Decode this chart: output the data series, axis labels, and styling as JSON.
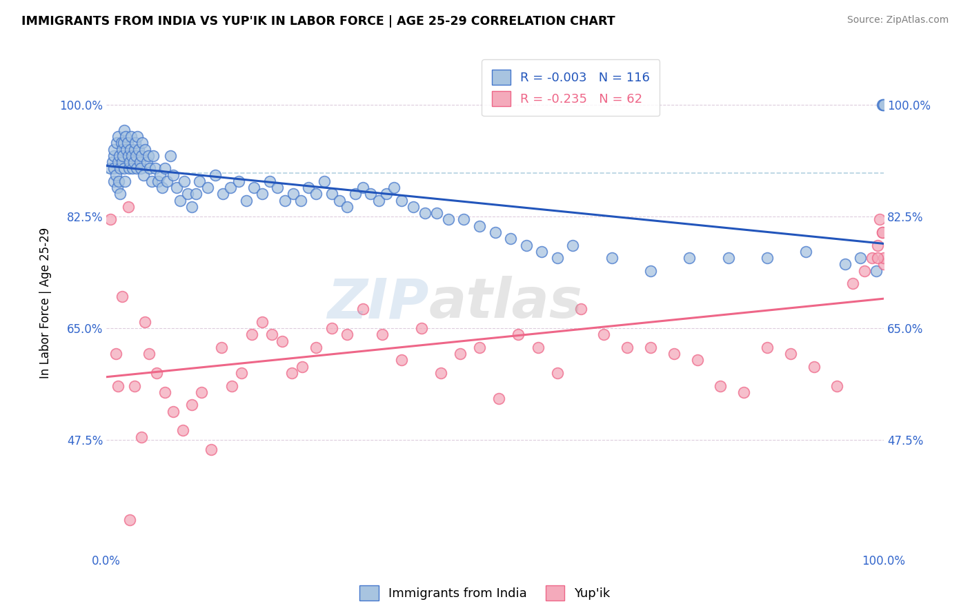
{
  "title": "IMMIGRANTS FROM INDIA VS YUP'IK IN LABOR FORCE | AGE 25-29 CORRELATION CHART",
  "source": "Source: ZipAtlas.com",
  "ylabel": "In Labor Force | Age 25-29",
  "xlim": [
    0.0,
    1.0
  ],
  "ylim": [
    0.3,
    1.08
  ],
  "yticks": [
    0.475,
    0.65,
    0.825,
    1.0
  ],
  "ytick_labels": [
    "47.5%",
    "65.0%",
    "82.5%",
    "100.0%"
  ],
  "xtick_labels": [
    "0.0%",
    "100.0%"
  ],
  "xticks": [
    0.0,
    1.0
  ],
  "blue_R": "-0.003",
  "blue_N": "116",
  "pink_R": "-0.235",
  "pink_N": "62",
  "legend_label_blue": "Immigrants from India",
  "legend_label_pink": "Yup'ik",
  "blue_color": "#A8C4E0",
  "pink_color": "#F4AABB",
  "blue_edge_color": "#4477CC",
  "pink_edge_color": "#EE6688",
  "blue_line_color": "#2255BB",
  "pink_line_color": "#EE6688",
  "dashed_line_color": "#AACCDD",
  "watermark_zip": "ZIP",
  "watermark_atlas": "atlas",
  "blue_scatter_x": [
    0.005,
    0.008,
    0.01,
    0.01,
    0.01,
    0.01,
    0.012,
    0.013,
    0.014,
    0.015,
    0.015,
    0.016,
    0.017,
    0.018,
    0.018,
    0.019,
    0.02,
    0.02,
    0.021,
    0.022,
    0.023,
    0.023,
    0.024,
    0.025,
    0.026,
    0.027,
    0.028,
    0.029,
    0.03,
    0.031,
    0.032,
    0.033,
    0.034,
    0.035,
    0.036,
    0.037,
    0.038,
    0.039,
    0.04,
    0.042,
    0.043,
    0.044,
    0.045,
    0.046,
    0.048,
    0.05,
    0.052,
    0.054,
    0.056,
    0.058,
    0.06,
    0.063,
    0.066,
    0.069,
    0.072,
    0.075,
    0.078,
    0.082,
    0.086,
    0.09,
    0.095,
    0.1,
    0.105,
    0.11,
    0.115,
    0.12,
    0.13,
    0.14,
    0.15,
    0.16,
    0.17,
    0.18,
    0.19,
    0.2,
    0.21,
    0.22,
    0.23,
    0.24,
    0.25,
    0.26,
    0.27,
    0.28,
    0.29,
    0.3,
    0.31,
    0.32,
    0.33,
    0.34,
    0.35,
    0.36,
    0.37,
    0.38,
    0.395,
    0.41,
    0.425,
    0.44,
    0.46,
    0.48,
    0.5,
    0.52,
    0.54,
    0.56,
    0.58,
    0.6,
    0.65,
    0.7,
    0.75,
    0.8,
    0.85,
    0.9,
    0.95,
    0.97,
    0.99,
    0.998,
    0.999,
    1.0
  ],
  "blue_scatter_y": [
    0.9,
    0.91,
    0.92,
    0.88,
    0.9,
    0.93,
    0.89,
    0.94,
    0.87,
    0.91,
    0.95,
    0.88,
    0.92,
    0.9,
    0.86,
    0.94,
    0.93,
    0.91,
    0.92,
    0.94,
    0.9,
    0.96,
    0.88,
    0.95,
    0.93,
    0.94,
    0.92,
    0.9,
    0.91,
    0.93,
    0.95,
    0.92,
    0.9,
    0.91,
    0.93,
    0.94,
    0.92,
    0.9,
    0.95,
    0.93,
    0.91,
    0.9,
    0.92,
    0.94,
    0.89,
    0.93,
    0.91,
    0.92,
    0.9,
    0.88,
    0.92,
    0.9,
    0.88,
    0.89,
    0.87,
    0.9,
    0.88,
    0.92,
    0.89,
    0.87,
    0.85,
    0.88,
    0.86,
    0.84,
    0.86,
    0.88,
    0.87,
    0.89,
    0.86,
    0.87,
    0.88,
    0.85,
    0.87,
    0.86,
    0.88,
    0.87,
    0.85,
    0.86,
    0.85,
    0.87,
    0.86,
    0.88,
    0.86,
    0.85,
    0.84,
    0.86,
    0.87,
    0.86,
    0.85,
    0.86,
    0.87,
    0.85,
    0.84,
    0.83,
    0.83,
    0.82,
    0.82,
    0.81,
    0.8,
    0.79,
    0.78,
    0.77,
    0.76,
    0.78,
    0.76,
    0.74,
    0.76,
    0.76,
    0.76,
    0.77,
    0.75,
    0.76,
    0.74,
    1.0,
    1.0,
    1.0
  ],
  "pink_scatter_x": [
    0.005,
    0.012,
    0.02,
    0.028,
    0.036,
    0.045,
    0.055,
    0.065,
    0.075,
    0.086,
    0.098,
    0.11,
    0.122,
    0.135,
    0.148,
    0.161,
    0.174,
    0.187,
    0.2,
    0.213,
    0.226,
    0.239,
    0.252,
    0.27,
    0.29,
    0.31,
    0.33,
    0.355,
    0.38,
    0.405,
    0.43,
    0.455,
    0.48,
    0.505,
    0.53,
    0.555,
    0.58,
    0.61,
    0.64,
    0.67,
    0.7,
    0.73,
    0.76,
    0.79,
    0.82,
    0.85,
    0.88,
    0.91,
    0.94,
    0.96,
    0.975,
    0.985,
    0.992,
    0.998,
    1.0,
    1.0,
    0.998,
    0.995,
    0.992,
    0.015,
    0.03,
    0.05
  ],
  "pink_scatter_y": [
    0.82,
    0.61,
    0.7,
    0.84,
    0.56,
    0.48,
    0.61,
    0.58,
    0.55,
    0.52,
    0.49,
    0.53,
    0.55,
    0.46,
    0.62,
    0.56,
    0.58,
    0.64,
    0.66,
    0.64,
    0.63,
    0.58,
    0.59,
    0.62,
    0.65,
    0.64,
    0.68,
    0.64,
    0.6,
    0.65,
    0.58,
    0.61,
    0.62,
    0.54,
    0.64,
    0.62,
    0.58,
    0.68,
    0.64,
    0.62,
    0.62,
    0.61,
    0.6,
    0.56,
    0.55,
    0.62,
    0.61,
    0.59,
    0.56,
    0.72,
    0.74,
    0.76,
    0.78,
    0.8,
    0.75,
    0.76,
    0.8,
    0.82,
    0.76,
    0.56,
    0.35,
    0.66
  ]
}
